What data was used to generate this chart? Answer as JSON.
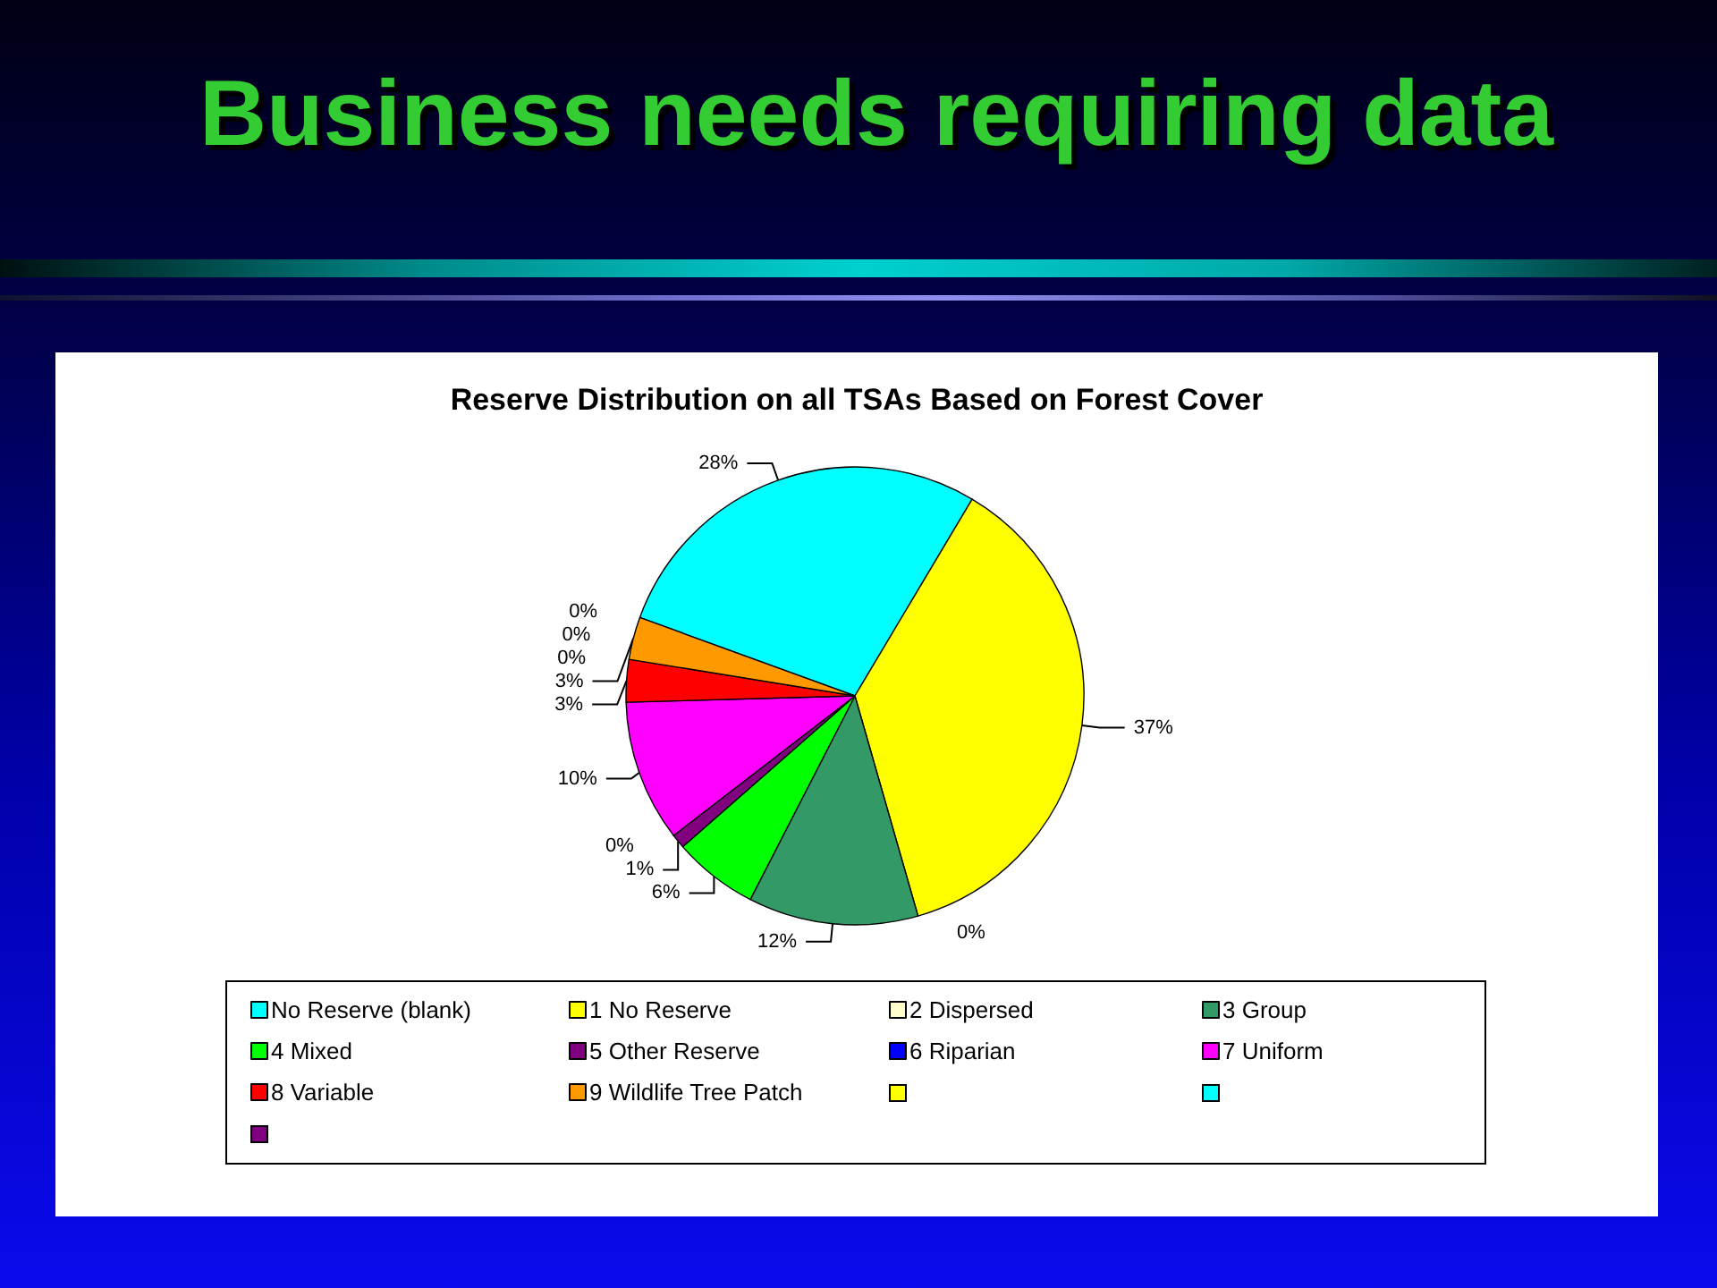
{
  "chart_data": {
    "type": "pie",
    "title": "Business needs requiring data",
    "subtitle": "Reserve Distribution on all TSAs Based on Forest Cover",
    "categories": [
      "No Reserve (blank)",
      "1 No Reserve",
      "2 Dispersed",
      "3 Group",
      "4 Mixed",
      "5 Other Reserve",
      "6 Riparian",
      "7 Uniform",
      "8 Variable",
      "9 Wildlife Tree Patch",
      null,
      null,
      null
    ],
    "values": [
      28,
      37,
      0,
      12,
      6,
      1,
      0,
      10,
      3,
      3,
      0,
      0,
      0
    ],
    "value_labels": [
      "28%",
      "37%",
      "0%",
      "12%",
      "6%",
      "1%",
      "0%",
      "10%",
      "3%",
      "3%",
      "0%",
      "0%",
      "0%"
    ],
    "colors": [
      "#00ffff",
      "#ffff00",
      "#ffffcc",
      "#339966",
      "#00ff00",
      "#800080",
      "#0000ff",
      "#ff00ff",
      "#ff0000",
      "#ff9900",
      "#ffff00",
      "#00ffff",
      "#800080"
    ],
    "legend": "bottom"
  }
}
